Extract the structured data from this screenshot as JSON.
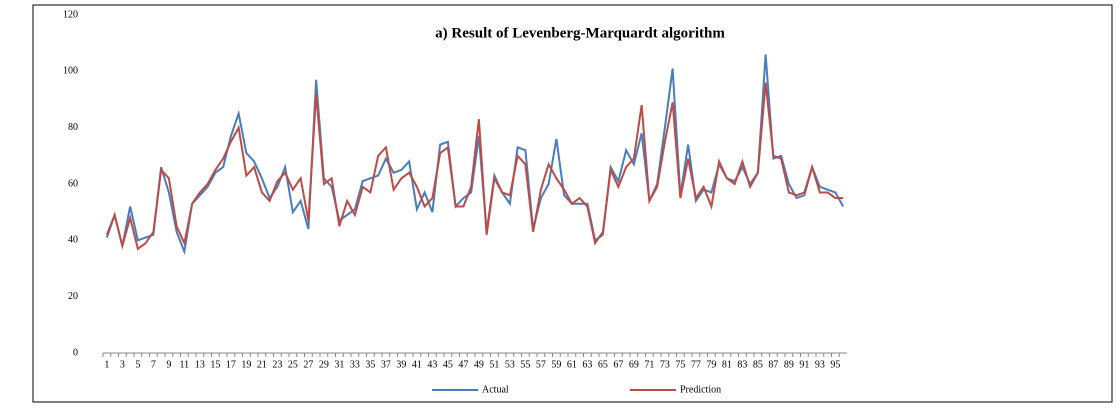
{
  "chart_data": {
    "type": "line",
    "title": "a) Result of  Levenberg-Marquardt algorithm",
    "categories": [
      "1",
      null,
      "3",
      null,
      "5",
      null,
      "7",
      null,
      "9",
      null,
      "11",
      null,
      "13",
      null,
      "15",
      null,
      "17",
      null,
      "19",
      null,
      "21",
      null,
      "23",
      null,
      "25",
      null,
      "27",
      null,
      "29",
      null,
      "31",
      null,
      "33",
      null,
      "35",
      null,
      "37",
      null,
      "39",
      null,
      "41",
      null,
      "43",
      null,
      "45",
      null,
      "47",
      null,
      "49",
      null,
      "51",
      null,
      "53",
      null,
      "55",
      null,
      "57",
      null,
      "59",
      null,
      "61",
      null,
      "63",
      null,
      "65",
      null,
      "67",
      null,
      "69",
      null,
      "71",
      null,
      "73",
      null,
      "75",
      null,
      "77",
      null,
      "79",
      null,
      "81",
      null,
      "83",
      null,
      "85",
      null,
      "87",
      null,
      "89",
      null,
      "91",
      null,
      "93",
      null,
      "95",
      null
    ],
    "series": [
      {
        "name": "Actual",
        "color": "#4a7ebb",
        "values": [
          41,
          49,
          38,
          52,
          40,
          41,
          42,
          66,
          57,
          43,
          36,
          53,
          56,
          59,
          64,
          66,
          77,
          85,
          71,
          68,
          62,
          55,
          59,
          66,
          50,
          54,
          44,
          97,
          62,
          59,
          47,
          49,
          51,
          61,
          62,
          63,
          69,
          64,
          65,
          68,
          51,
          57,
          50,
          74,
          75,
          52,
          55,
          57,
          77,
          43,
          63,
          57,
          53,
          73,
          72,
          44,
          55,
          60,
          76,
          56,
          53,
          53,
          53,
          40,
          42,
          66,
          61,
          72,
          67,
          78,
          54,
          60,
          80,
          101,
          56,
          74,
          54,
          58,
          57,
          67,
          62,
          61,
          66,
          60,
          64,
          106,
          69,
          70,
          60,
          55,
          56,
          66,
          59,
          58,
          57,
          52
        ]
      },
      {
        "name": "Prediction",
        "color": "#be4b48",
        "values": [
          42,
          49,
          38,
          48,
          37,
          39,
          43,
          65,
          62,
          45,
          39,
          53,
          57,
          60,
          65,
          69,
          75,
          80,
          63,
          66,
          57,
          54,
          61,
          64,
          58,
          62,
          47,
          92,
          60,
          62,
          45,
          54,
          49,
          59,
          57,
          70,
          73,
          58,
          62,
          64,
          59,
          52,
          55,
          71,
          73,
          52,
          52,
          59,
          83,
          42,
          62,
          57,
          56,
          70,
          67,
          43,
          58,
          67,
          62,
          58,
          53,
          55,
          52,
          39,
          43,
          65,
          59,
          66,
          69,
          88,
          54,
          59,
          75,
          89,
          55,
          69,
          55,
          59,
          52,
          68,
          62,
          60,
          68,
          59,
          64,
          96,
          70,
          69,
          57,
          56,
          57,
          66,
          57,
          57,
          55,
          55
        ]
      }
    ],
    "ylim": [
      0,
      120
    ],
    "yticks": [
      0,
      20,
      40,
      60,
      80,
      100,
      120
    ],
    "legend": "bottom"
  }
}
